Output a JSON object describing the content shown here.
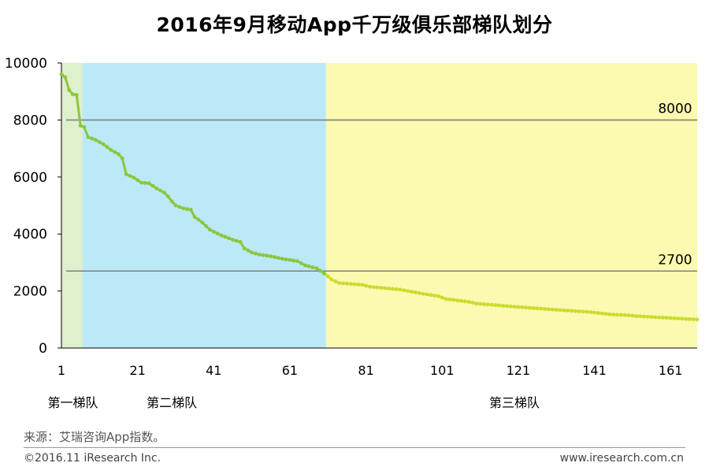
{
  "title": "2016年9月移动App千万级俱乐部梯队划分",
  "source": "来源：艾瑞咨询App指数。",
  "copyright": "©2016.11 iResearch Inc.",
  "website": "www.iresearch.com.cn",
  "colors": {
    "tier1_bg": "#dff0cd",
    "tier2_bg": "#bce9f7",
    "tier3_bg": "#fcf9b0",
    "line_tier1_2": "#8cc63f",
    "line_tier3": "#c9dd2f",
    "threshold": "#7f7f7f"
  },
  "chart_data": {
    "type": "line",
    "title": "2016年9月移动App千万级俱乐部梯队划分",
    "xlabel": "",
    "ylabel": "",
    "xlim": [
      1,
      168
    ],
    "ylim": [
      0,
      10000
    ],
    "x_ticks": [
      1,
      21,
      41,
      61,
      81,
      101,
      121,
      141,
      161
    ],
    "y_ticks": [
      0,
      2000,
      4000,
      6000,
      8000,
      10000
    ],
    "thresholds": [
      {
        "value": 8000,
        "label": "8000"
      },
      {
        "value": 2700,
        "label": "2700"
      }
    ],
    "tiers": [
      {
        "name": "第一梯队",
        "from": 1,
        "to": 6
      },
      {
        "name": "第二梯队",
        "from": 7,
        "to": 70
      },
      {
        "name": "第三梯队",
        "from": 71,
        "to": 168
      }
    ],
    "tier_label_positions": [
      {
        "label": "第一梯队",
        "x": 4
      },
      {
        "label": "第二梯队",
        "x": 30
      },
      {
        "label": "第三梯队",
        "x": 120
      }
    ],
    "anchors": [
      [
        1,
        9600
      ],
      [
        2,
        9500
      ],
      [
        3,
        9050
      ],
      [
        4,
        8900
      ],
      [
        5,
        8880
      ],
      [
        6,
        7800
      ],
      [
        7,
        7750
      ],
      [
        8,
        7400
      ],
      [
        10,
        7300
      ],
      [
        12,
        7150
      ],
      [
        14,
        6950
      ],
      [
        16,
        6800
      ],
      [
        17,
        6650
      ],
      [
        18,
        6100
      ],
      [
        20,
        5980
      ],
      [
        22,
        5800
      ],
      [
        24,
        5780
      ],
      [
        26,
        5600
      ],
      [
        28,
        5450
      ],
      [
        29,
        5320
      ],
      [
        30,
        5150
      ],
      [
        31,
        5000
      ],
      [
        33,
        4900
      ],
      [
        35,
        4850
      ],
      [
        36,
        4600
      ],
      [
        38,
        4400
      ],
      [
        40,
        4150
      ],
      [
        43,
        3950
      ],
      [
        46,
        3800
      ],
      [
        48,
        3720
      ],
      [
        49,
        3500
      ],
      [
        51,
        3350
      ],
      [
        53,
        3280
      ],
      [
        56,
        3220
      ],
      [
        59,
        3130
      ],
      [
        63,
        3050
      ],
      [
        65,
        2900
      ],
      [
        68,
        2800
      ],
      [
        70,
        2620
      ],
      [
        71,
        2520
      ],
      [
        72,
        2400
      ],
      [
        74,
        2280
      ],
      [
        80,
        2220
      ],
      [
        82,
        2150
      ],
      [
        90,
        2050
      ],
      [
        96,
        1900
      ],
      [
        100,
        1820
      ],
      [
        102,
        1720
      ],
      [
        108,
        1620
      ],
      [
        110,
        1560
      ],
      [
        120,
        1450
      ],
      [
        130,
        1350
      ],
      [
        140,
        1260
      ],
      [
        145,
        1180
      ],
      [
        150,
        1150
      ],
      [
        152,
        1120
      ],
      [
        160,
        1060
      ],
      [
        168,
        1000
      ]
    ]
  }
}
